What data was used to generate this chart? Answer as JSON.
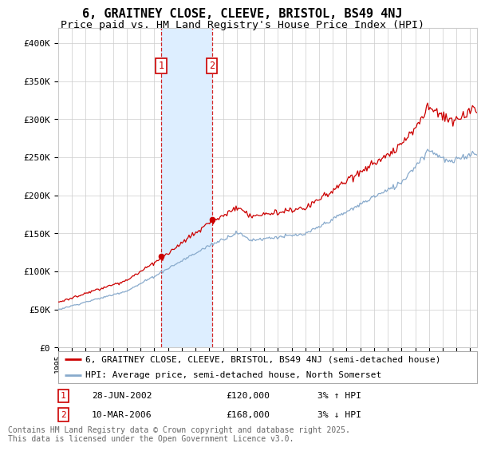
{
  "title": "6, GRAITNEY CLOSE, CLEEVE, BRISTOL, BS49 4NJ",
  "subtitle": "Price paid vs. HM Land Registry's House Price Index (HPI)",
  "ylim": [
    0,
    420000
  ],
  "yticks": [
    0,
    50000,
    100000,
    150000,
    200000,
    250000,
    300000,
    350000,
    400000
  ],
  "ytick_labels": [
    "£0",
    "£50K",
    "£100K",
    "£150K",
    "£200K",
    "£250K",
    "£300K",
    "£350K",
    "£400K"
  ],
  "x_start_year": 1995,
  "x_end_year": 2025,
  "sale1_date": 2002.49,
  "sale1_price": 120000,
  "sale2_date": 2006.19,
  "sale2_price": 168000,
  "line1_color": "#cc0000",
  "line2_color": "#88aacc",
  "shade_color": "#ddeeff",
  "grid_color": "#cccccc",
  "bg_color": "#ffffff",
  "legend1": "6, GRAITNEY CLOSE, CLEEVE, BRISTOL, BS49 4NJ (semi-detached house)",
  "legend2": "HPI: Average price, semi-detached house, North Somerset",
  "sale1_col1": "28-JUN-2002",
  "sale1_col2": "£120,000",
  "sale1_col3": "3% ↑ HPI",
  "sale2_col1": "10-MAR-2006",
  "sale2_col2": "£168,000",
  "sale2_col3": "3% ↓ HPI",
  "footer": "Contains HM Land Registry data © Crown copyright and database right 2025.\nThis data is licensed under the Open Government Licence v3.0.",
  "title_fontsize": 11,
  "subtitle_fontsize": 9.5,
  "axis_fontsize": 8,
  "legend_fontsize": 8,
  "footer_fontsize": 7
}
